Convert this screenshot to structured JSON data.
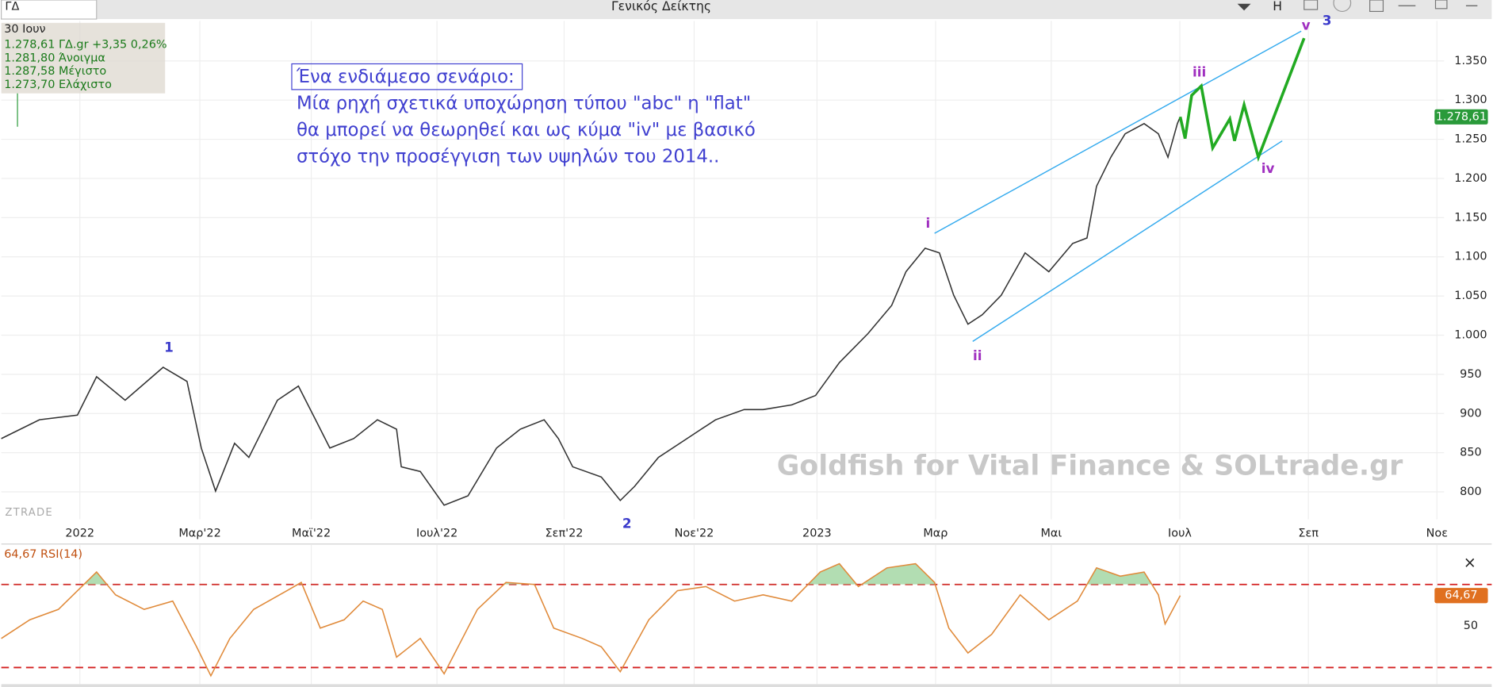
{
  "header": {
    "symbol": "ΓΔ",
    "title": "Γενικός Δείκτης",
    "button": "H"
  },
  "info": [
    "30 Ιουν",
    "1.278,61 ΓΔ.gr +3,35 0,26%",
    "1.281,80 Άνοιγμα",
    "1.287,58 Μέγιστο",
    "1.273,70 Ελάχιστο"
  ],
  "note": {
    "heading": "Ένα ενδιάμεσο σενάριο:",
    "lines": [
      "Μία ρηχή σχετικά υποχώρηση τύπου \"abc\" η \"flat\"",
      "θα μπορεί να θεωρηθεί και ως κύμα \"iv\" με βασικό",
      "στόχο την προσέγγιση των υψηλών του 2014.."
    ]
  },
  "watermark": "Goldfish for Vital Finance & SOLtrade.gr",
  "brand": "ZTRADE",
  "close": "×",
  "chart_data": [
    {
      "type": "line",
      "color": "#333333",
      "x": [
        0,
        2.67,
        5.33,
        6.67,
        8.67,
        11.33,
        13,
        14,
        15,
        16.33,
        17.33,
        19.33,
        20.8,
        22,
        23,
        24.67,
        26.33,
        27.67,
        28,
        29.33,
        31,
        32.67,
        34.67,
        36.33,
        38,
        39,
        40,
        42,
        43.33,
        44.33,
        46,
        48,
        50,
        52,
        53.33,
        55.33,
        57,
        58.67,
        60.67,
        62.33,
        63.33,
        64.67,
        65.67,
        66.67,
        67.67,
        68.67,
        70,
        71.67,
        73.33,
        75,
        76,
        76.67,
        77.67,
        78.67,
        80,
        81,
        81.67,
        82.33,
        82.53
      ],
      "values": [
        868,
        892,
        898,
        947,
        917,
        959,
        941,
        856,
        801,
        862,
        844,
        917,
        935,
        892,
        856,
        868,
        892,
        880,
        832,
        826,
        783,
        795,
        856,
        880,
        892,
        868,
        832,
        819,
        789,
        807,
        844,
        868,
        892,
        905,
        905,
        911,
        923,
        965,
        1002,
        1038,
        1081,
        1111,
        1105,
        1051,
        1014,
        1026,
        1051,
        1105,
        1081,
        1117,
        1124,
        1190,
        1227,
        1257,
        1270,
        1257,
        1227,
        1270,
        1278.61
      ],
      "last_label": "1.278,61",
      "last_color": "#2a9a3a",
      "projection": {
        "color": "#22aa22",
        "x": [
          82.53,
          82.87,
          83.33,
          84,
          84.8,
          86,
          86.33,
          87,
          88,
          91.2
        ],
        "values": [
          1278.61,
          1251,
          1306,
          1318,
          1239,
          1276,
          1248,
          1294,
          1227,
          1379
        ]
      },
      "channels": {
        "color": "#33aaee",
        "lines": [
          {
            "x": [
              65.33,
              91
            ],
            "values": [
              1130,
              1388
            ]
          },
          {
            "x": [
              68,
              89.67
            ],
            "values": [
              992,
              1248
            ]
          }
        ]
      },
      "annotations": [
        {
          "text": "1",
          "x": 11.73,
          "y": 984,
          "color": "#3a3acb"
        },
        {
          "text": "2",
          "x": 43.8,
          "y": 759,
          "color": "#3a3acb"
        },
        {
          "text": "i",
          "x": 64.87,
          "y": 1142,
          "color": "#a030c0"
        },
        {
          "text": "ii",
          "x": 68.33,
          "y": 973,
          "color": "#a030c0"
        },
        {
          "text": "iii",
          "x": 83.87,
          "y": 1335,
          "color": "#a030c0"
        },
        {
          "text": "iv",
          "x": 88.67,
          "y": 1212,
          "color": "#a030c0"
        },
        {
          "text": "v",
          "x": 91.33,
          "y": 1395,
          "color": "#a030c0"
        },
        {
          "text": "3",
          "x": 92.8,
          "y": 1401,
          "color": "#3a3acb"
        }
      ],
      "xlim": [
        0,
        101
      ],
      "xticks": [
        {
          "value": 5.5,
          "label": "2022"
        },
        {
          "value": 13.9,
          "label": "Μαρ'22"
        },
        {
          "value": 21.7,
          "label": "Μαϊ'22"
        },
        {
          "value": 30.5,
          "label": "Ιουλ'22"
        },
        {
          "value": 39.4,
          "label": "Σεπ'22"
        },
        {
          "value": 48.5,
          "label": "Νοε'22"
        },
        {
          "value": 57.1,
          "label": "2023"
        },
        {
          "value": 65.4,
          "label": "Μαρ"
        },
        {
          "value": 73.5,
          "label": "Μαι"
        },
        {
          "value": 82.5,
          "label": "Ιουλ"
        },
        {
          "value": 91.5,
          "label": "Σεπ"
        },
        {
          "value": 100.5,
          "label": "Νοε"
        }
      ],
      "ylim": [
        765,
        1401
      ],
      "yticks": [
        800,
        850,
        900,
        950,
        {
          "value": 1000,
          "label": "1.000"
        },
        {
          "value": 1050,
          "label": "1.050"
        },
        {
          "value": 1100,
          "label": "1.100"
        },
        {
          "value": 1150,
          "label": "1.150"
        },
        {
          "value": 1200,
          "label": "1.200"
        },
        {
          "value": 1250,
          "label": "1.250"
        },
        {
          "value": 1300,
          "label": "1.300"
        },
        {
          "value": 1350,
          "label": "1.350"
        }
      ],
      "grid": true
    },
    {
      "type": "line",
      "title": "64,67 RSI(14)",
      "color": "#e08a3a",
      "fill": "#9fd49f",
      "x": [
        0,
        2,
        4,
        6.67,
        8,
        10,
        12,
        13.67,
        14.67,
        16,
        17.67,
        20,
        21,
        22.33,
        24,
        25.33,
        26.67,
        27.67,
        29.33,
        31,
        33.33,
        35.33,
        37.33,
        38.67,
        40.67,
        42,
        43.33,
        45.33,
        47.33,
        49.33,
        51.33,
        53.33,
        55.33,
        57.33,
        58.67,
        60,
        62,
        64,
        65.33,
        66.33,
        67.67,
        69.33,
        71.33,
        73.33,
        75.33,
        76.67,
        78.33,
        80,
        81,
        81.47,
        82.53
      ],
      "values": [
        44,
        53,
        58,
        76,
        65,
        58,
        62,
        40,
        26,
        44,
        58,
        67,
        71,
        49,
        53,
        62,
        58,
        35,
        44,
        27,
        58,
        71,
        70,
        49,
        44,
        40,
        28,
        53,
        67,
        69,
        62,
        65,
        62,
        76,
        80,
        69,
        78,
        80,
        71,
        49,
        37,
        46,
        65,
        53,
        62,
        78,
        74,
        76,
        65,
        51,
        64.67
      ],
      "last_label": "64,67",
      "last_color": "#e07020",
      "levels": [
        70,
        30
      ],
      "level_color": "#d42020",
      "xlim": [
        0,
        101
      ],
      "ylim": [
        22,
        89
      ],
      "yticks": [
        50
      ]
    }
  ]
}
